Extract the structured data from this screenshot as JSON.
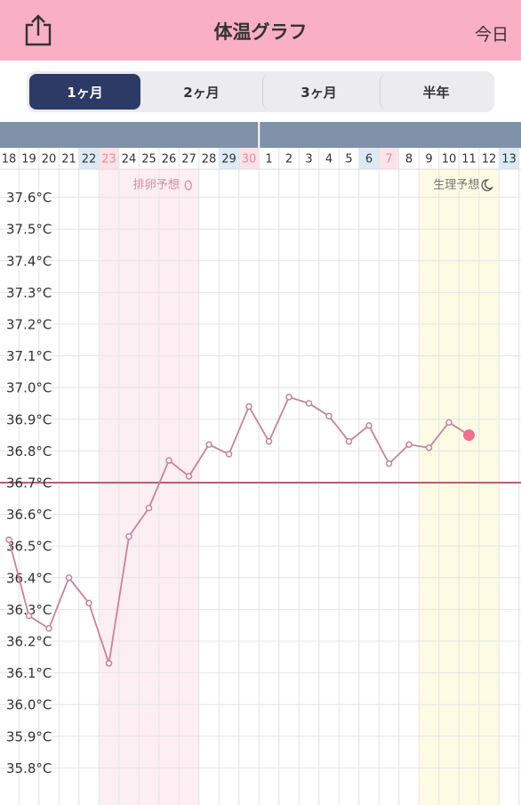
{
  "header": {
    "title": "体温グラフ",
    "right": "今日"
  },
  "tabs": {
    "items": [
      "1ヶ月",
      "2ヶ月",
      "3ヶ月",
      "半年"
    ],
    "selected": 0
  },
  "chart_data": {
    "type": "line",
    "categories": [
      "18",
      "19",
      "20",
      "21",
      "22",
      "23",
      "24",
      "25",
      "26",
      "27",
      "28",
      "29",
      "30",
      "1",
      "2",
      "3",
      "4",
      "5",
      "6",
      "7",
      "8",
      "9",
      "10",
      "11",
      "12",
      "13"
    ],
    "saturdays": [
      "22",
      "29",
      "6",
      "13"
    ],
    "holidays": [
      "23",
      "30",
      "7"
    ],
    "series": [
      {
        "name": "体温",
        "color": "#c9829a",
        "values": [
          36.52,
          36.28,
          36.24,
          36.4,
          36.32,
          36.13,
          36.53,
          36.62,
          36.77,
          36.72,
          36.82,
          36.79,
          36.94,
          36.83,
          36.97,
          36.95,
          36.91,
          36.83,
          36.88,
          36.76,
          36.82,
          36.81,
          36.89,
          36.85,
          null,
          null
        ]
      }
    ],
    "bands": [
      {
        "label": "排卵予想",
        "from": "23",
        "to": "27",
        "color": "#fdeef3",
        "text_color": "#d98aa0"
      },
      {
        "label": "生理予想",
        "from": "9",
        "to": "12",
        "color": "#fdfbe4",
        "text_color": "#777777"
      }
    ],
    "reference_line": {
      "value": 36.7,
      "color": "#b5606e"
    },
    "ylim": [
      35.7,
      37.7
    ],
    "yticks": [
      {
        "value": 35.8,
        "label": "35.8°C"
      },
      {
        "value": 35.9,
        "label": "35.9°C"
      },
      {
        "value": 36.0,
        "label": "36.0°C"
      },
      {
        "value": 36.1,
        "label": "36.1°C"
      },
      {
        "value": 36.2,
        "label": "36.2°C"
      },
      {
        "value": 36.3,
        "label": "36.3°C"
      },
      {
        "value": 36.4,
        "label": "36.4°C"
      },
      {
        "value": 36.5,
        "label": "36.5°C"
      },
      {
        "value": 36.6,
        "label": "36.6°C"
      },
      {
        "value": 36.7,
        "label": "36.7°C"
      },
      {
        "value": 36.8,
        "label": "36.8°C"
      },
      {
        "value": 36.9,
        "label": "36.9°C"
      },
      {
        "value": 37.0,
        "label": "37.0°C"
      },
      {
        "value": 37.1,
        "label": "37.1°C"
      },
      {
        "value": 37.2,
        "label": "37.2°C"
      },
      {
        "value": 37.3,
        "label": "37.3°C"
      },
      {
        "value": 37.4,
        "label": "37.4°C"
      },
      {
        "value": 37.5,
        "label": "37.5°C"
      },
      {
        "value": 37.6,
        "label": "37.6°C"
      }
    ],
    "grid": true
  }
}
